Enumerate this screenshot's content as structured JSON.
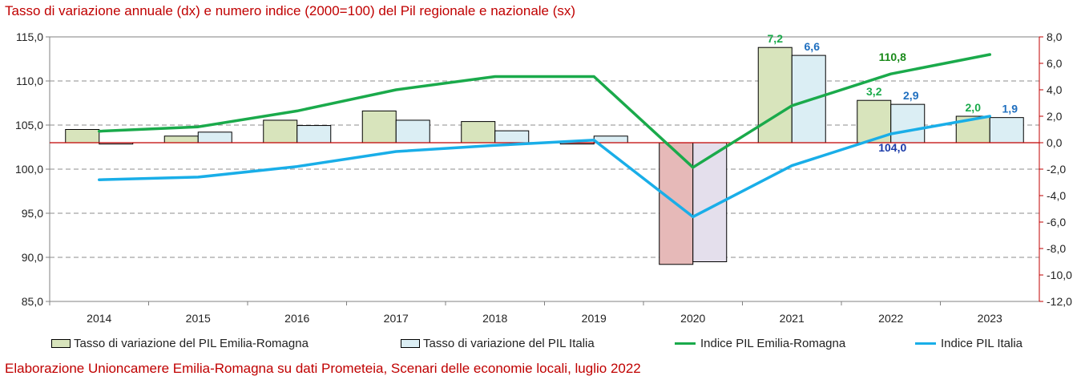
{
  "title": "Tasso di variazione annuale (dx) e numero indice (2000=100) del Pil regionale e nazionale (sx)",
  "source": "Elaborazione Unioncamere Emilia-Romagna su dati Prometeia, Scenari delle economie locali, luglio 2022",
  "colors": {
    "bar_er": "#d8e4bc",
    "bar_er_negative": "#e6b9b8",
    "bar_it": "#dbeef4",
    "bar_it_negative": "#e4dfec",
    "line_er": "#1aaa4b",
    "line_it": "#19aee8",
    "zero_line": "#c00000",
    "label_er": "#1aaa4b",
    "label_it": "#1f6fbf",
    "label_index_er": "#1a8a1a",
    "label_index_it": "#1a3aa8"
  },
  "chart_data": {
    "type": "bar",
    "categories": [
      "2014",
      "2015",
      "2016",
      "2017",
      "2018",
      "2019",
      "2020",
      "2021",
      "2022",
      "2023"
    ],
    "left_axis": {
      "ylim": [
        85,
        115
      ],
      "ticks": [
        "85,0",
        "90,0",
        "95,0",
        "100,0",
        "105,0",
        "110,0",
        "115,0"
      ],
      "values": [
        85,
        90,
        95,
        100,
        105,
        110,
        115
      ]
    },
    "right_axis": {
      "ylim": [
        -12,
        8
      ],
      "ticks": [
        "-12,0",
        "-10,0",
        "-8,0",
        "-6,0",
        "-4,0",
        "-2,0",
        "0,0",
        "2,0",
        "4,0",
        "6,0",
        "8,0"
      ],
      "values": [
        -12,
        -10,
        -8,
        -6,
        -4,
        -2,
        0,
        2,
        4,
        6,
        8
      ]
    },
    "grid": true,
    "series": [
      {
        "name": "Tasso di variazione del PIL Emilia-Romagna",
        "kind": "bar",
        "axis": "right",
        "values": [
          1.0,
          0.5,
          1.7,
          2.4,
          1.6,
          -0.1,
          -9.2,
          7.2,
          3.2,
          2.0
        ]
      },
      {
        "name": "Tasso di variazione del PIL Italia",
        "kind": "bar",
        "axis": "right",
        "values": [
          -0.1,
          0.8,
          1.3,
          1.7,
          0.9,
          0.5,
          -9.0,
          6.6,
          2.9,
          1.9
        ]
      },
      {
        "name": "Indice PIL Emilia-Romagna",
        "kind": "line",
        "axis": "left",
        "values": [
          104.3,
          104.8,
          106.6,
          109.0,
          110.5,
          110.5,
          100.2,
          107.2,
          110.8,
          113.0
        ]
      },
      {
        "name": "Indice PIL Italia",
        "kind": "line",
        "axis": "left",
        "values": [
          98.8,
          99.1,
          100.3,
          102.0,
          102.7,
          103.3,
          94.6,
          100.4,
          104.0,
          106.0
        ]
      }
    ],
    "annotations": [
      {
        "text": "7,2",
        "series": 0,
        "index": 7
      },
      {
        "text": "6,6",
        "series": 1,
        "index": 7
      },
      {
        "text": "3,2",
        "series": 0,
        "index": 8
      },
      {
        "text": "2,9",
        "series": 1,
        "index": 8
      },
      {
        "text": "2,0",
        "series": 0,
        "index": 9
      },
      {
        "text": "1,9",
        "series": 1,
        "index": 9
      },
      {
        "text": "110,8",
        "series": 2,
        "index": 8
      },
      {
        "text": "104,0",
        "series": 3,
        "index": 8
      }
    ],
    "legend": {
      "placement": "bottom",
      "items": [
        "Tasso di variazione del PIL Emilia-Romagna",
        "Tasso di variazione del PIL Italia",
        "Indice PIL Emilia-Romagna",
        "Indice PIL Italia"
      ]
    }
  }
}
